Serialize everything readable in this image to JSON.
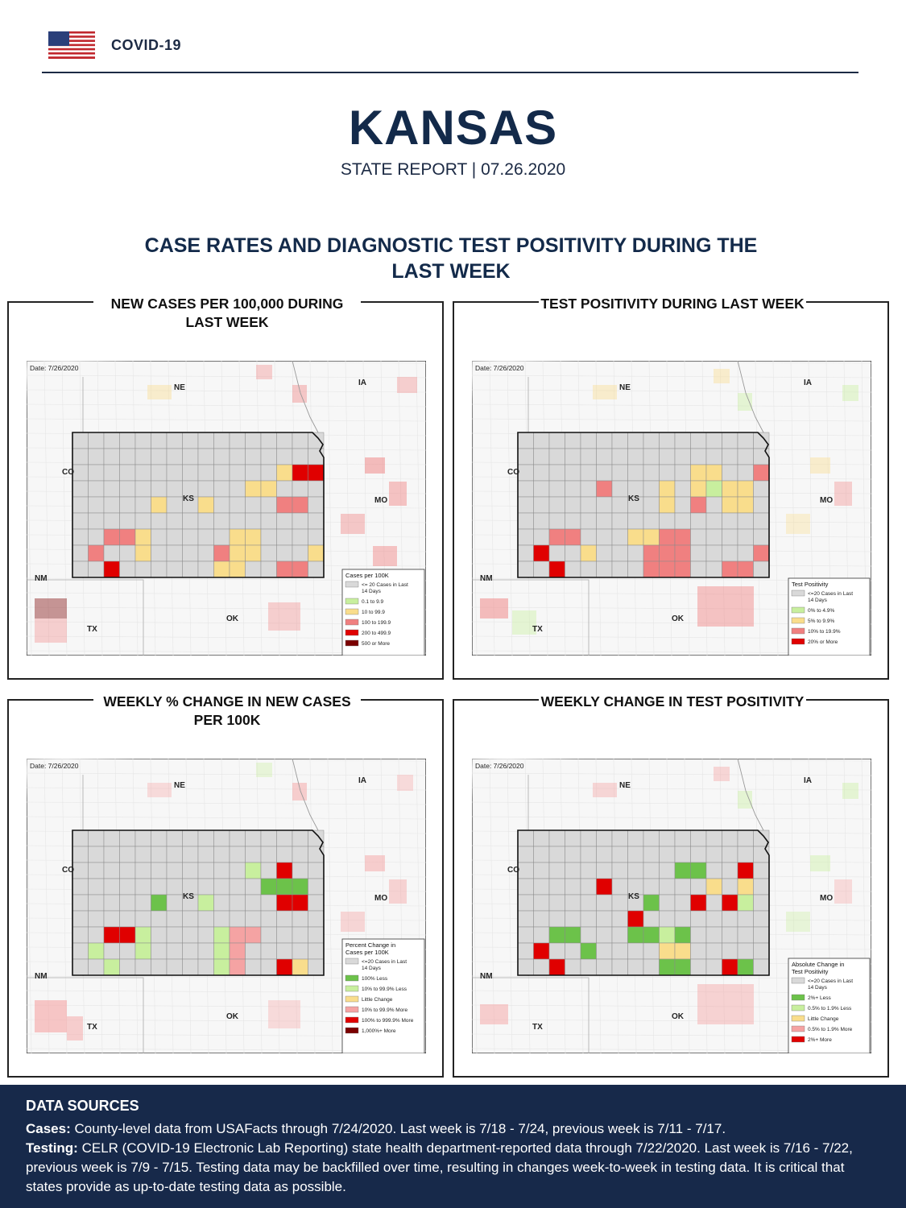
{
  "header": {
    "label": "COVID-19"
  },
  "report": {
    "state": "KANSAS",
    "subtitle": "STATE REPORT | 07.26.2020"
  },
  "section_title": "CASE RATES AND DIAGNOSTIC TEST POSITIVITY DURING THE LAST WEEK",
  "panels": [
    {
      "title": "NEW CASES PER 100,000 DURING LAST WEEK",
      "date": "Date: 7/26/2020",
      "legend_title": "Cases per 100K",
      "legend": [
        {
          "label": "<= 20 Cases in Last 14 Days",
          "color": "#d9d9d9"
        },
        {
          "label": "0.1 to 9.9",
          "color": "#c8ef9e"
        },
        {
          "label": "10 to 99.9",
          "color": "#f9dd8c"
        },
        {
          "label": "100 to 199.9",
          "color": "#f08080"
        },
        {
          "label": "200 to 499.9",
          "color": "#e00000"
        },
        {
          "label": "500 or More",
          "color": "#7a0000"
        }
      ]
    },
    {
      "title": "TEST POSITIVITY DURING LAST WEEK",
      "date": "Date: 7/26/2020",
      "legend_title": "Test Positivity",
      "legend": [
        {
          "label": "<=20 Cases in Last 14 Days",
          "color": "#d9d9d9"
        },
        {
          "label": "0% to 4.9%",
          "color": "#c8ef9e"
        },
        {
          "label": "5% to 9.9%",
          "color": "#f9dd8c"
        },
        {
          "label": "10% to 19.9%",
          "color": "#f08080"
        },
        {
          "label": "20% or More",
          "color": "#e00000"
        }
      ]
    },
    {
      "title": "WEEKLY % CHANGE IN NEW CASES PER 100K",
      "date": "Date: 7/26/2020",
      "legend_title": "Percent Change in Cases per 100K",
      "legend": [
        {
          "label": "<=20 Cases in Last 14 Days",
          "color": "#d9d9d9"
        },
        {
          "label": "100% Less",
          "color": "#6cc24a"
        },
        {
          "label": "10% to 99.9% Less",
          "color": "#c8ef9e"
        },
        {
          "label": "Little Change",
          "color": "#f9dd8c"
        },
        {
          "label": "10% to 99.9% More",
          "color": "#f5a3a3"
        },
        {
          "label": "100% to 999.9% More",
          "color": "#e00000"
        },
        {
          "label": "1,000%+ More",
          "color": "#7a0000"
        }
      ]
    },
    {
      "title": "WEEKLY CHANGE IN TEST POSITIVITY",
      "date": "Date: 7/26/2020",
      "legend_title": "Absolute Change in Test Positivity",
      "legend": [
        {
          "label": "<=20 Cases in Last 14 Days",
          "color": "#d9d9d9"
        },
        {
          "label": "2%+ Less",
          "color": "#6cc24a"
        },
        {
          "label": "0.5% to 1.9% Less",
          "color": "#c8ef9e"
        },
        {
          "label": "Little Change",
          "color": "#f9dd8c"
        },
        {
          "label": "0.5% to 1.9% More",
          "color": "#f5a3a3"
        },
        {
          "label": "2%+ More",
          "color": "#e00000"
        }
      ]
    }
  ],
  "map_labels": {
    "ne": "NE",
    "ia": "IA",
    "co": "CO",
    "ks": "KS",
    "mo": "MO",
    "nm": "NM",
    "tx": "TX",
    "ok": "OK"
  },
  "data_sources": {
    "heading": "DATA SOURCES",
    "cases_label": "Cases:",
    "cases_text": " County-level data from USAFacts through 7/24/2020. Last week is 7/18 - 7/24, previous week is 7/11 - 7/17.",
    "testing_label": "Testing:",
    "testing_text": " CELR (COVID-19 Electronic Lab Reporting) state health department-reported data through 7/22/2020. Last week is 7/16 - 7/22, previous week is 7/9 - 7/15. Testing data may be backfilled over time, resulting in changes week-to-week in testing data. It is critical that states provide as up-to-date testing data as possible."
  }
}
